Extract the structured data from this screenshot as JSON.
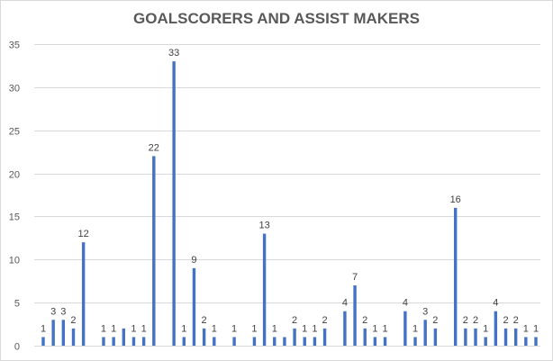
{
  "chart_data": {
    "type": "bar",
    "title": "GOALSCORERS AND ASSIST MAKERS",
    "xlabel": "",
    "ylabel": "",
    "ylim": [
      0,
      35
    ],
    "yticks": [
      0,
      5,
      10,
      15,
      20,
      25,
      30,
      35
    ],
    "grid": true,
    "legend": "none",
    "bar_color": "#4472c4",
    "grid_color": "#d9d9d9",
    "values": [
      1,
      3,
      3,
      2,
      12,
      null,
      1,
      1,
      2,
      1,
      1,
      22,
      null,
      33,
      1,
      9,
      2,
      1,
      null,
      1,
      null,
      1,
      13,
      1,
      1,
      2,
      1,
      1,
      2,
      null,
      4,
      7,
      2,
      1,
      1,
      null,
      4,
      1,
      3,
      2,
      null,
      16,
      2,
      2,
      1,
      4,
      2,
      2,
      1,
      1
    ],
    "data_labels": [
      "1",
      "3",
      "3",
      "2",
      "12",
      "",
      "1",
      "1",
      "",
      "1",
      "1",
      "22",
      "",
      "33",
      "1",
      "9",
      "2",
      "1",
      "",
      "1",
      "",
      "1",
      "13",
      "1",
      "",
      "2",
      "1",
      "1",
      "2",
      "",
      "4",
      "7",
      "2",
      "1",
      "1",
      "",
      "4",
      "1",
      "3",
      "2",
      "",
      "16",
      "2",
      "2",
      "1",
      "4",
      "2",
      "2",
      "1",
      "1"
    ]
  }
}
